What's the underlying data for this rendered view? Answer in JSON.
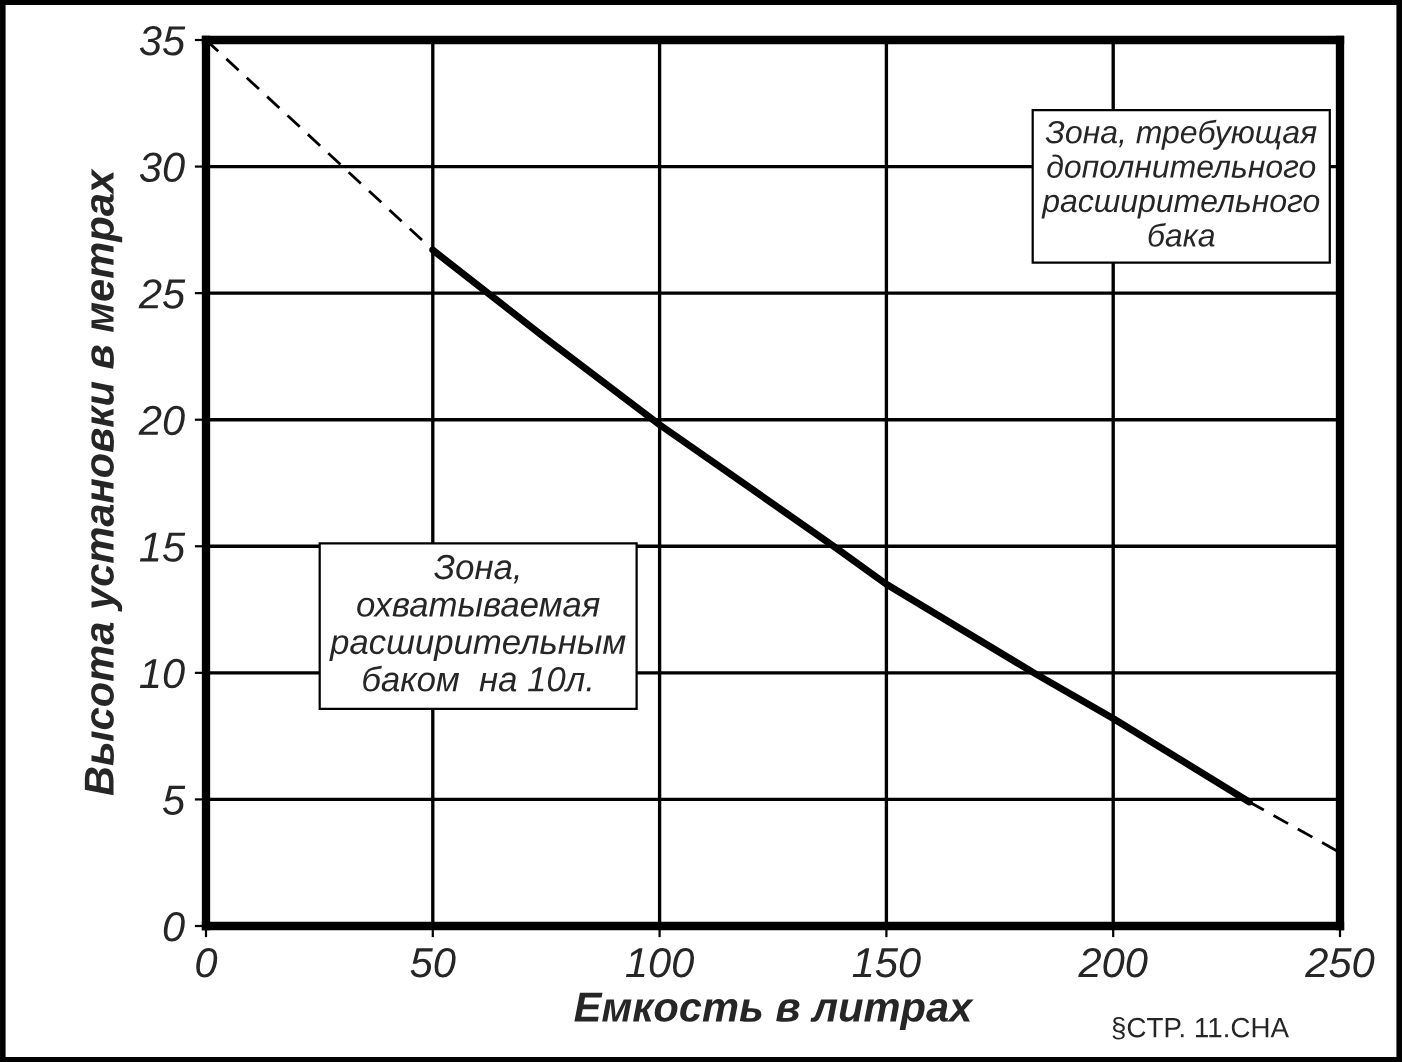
{
  "chart_data": {
    "type": "line",
    "xlabel": "Емкость в литрах",
    "ylabel": "Высота установки в метрах",
    "xlim": [
      0,
      250
    ],
    "ylim": [
      0,
      35
    ],
    "xticks": [
      0,
      50,
      100,
      150,
      200,
      250
    ],
    "yticks": [
      0,
      5,
      10,
      15,
      20,
      25,
      30,
      35
    ],
    "grid": true,
    "marker": "none",
    "series": [
      {
        "x": [
          0,
          50
        ],
        "values": [
          35,
          26.7
        ],
        "color": "#000000",
        "line_style": "dashed"
      },
      {
        "x": [
          50,
          75,
          100,
          138.4,
          150,
          182.5,
          200,
          230
        ],
        "values": [
          26.7,
          23.2,
          19.8,
          15,
          13.5,
          10,
          8.2,
          4.9
        ],
        "color": "#000000",
        "line_style": "solid"
      },
      {
        "x": [
          230,
          250
        ],
        "values": [
          4.9,
          2.9
        ],
        "color": "#000000",
        "line_style": "dashed"
      }
    ],
    "annotations": [
      "Зона, требующая\nдополнительного\nрасширительного\nбака",
      "Зона,\nохватываемая\nрасширительным\nбаком  на 10л.",
      "§CTP. 11.CHA"
    ]
  }
}
